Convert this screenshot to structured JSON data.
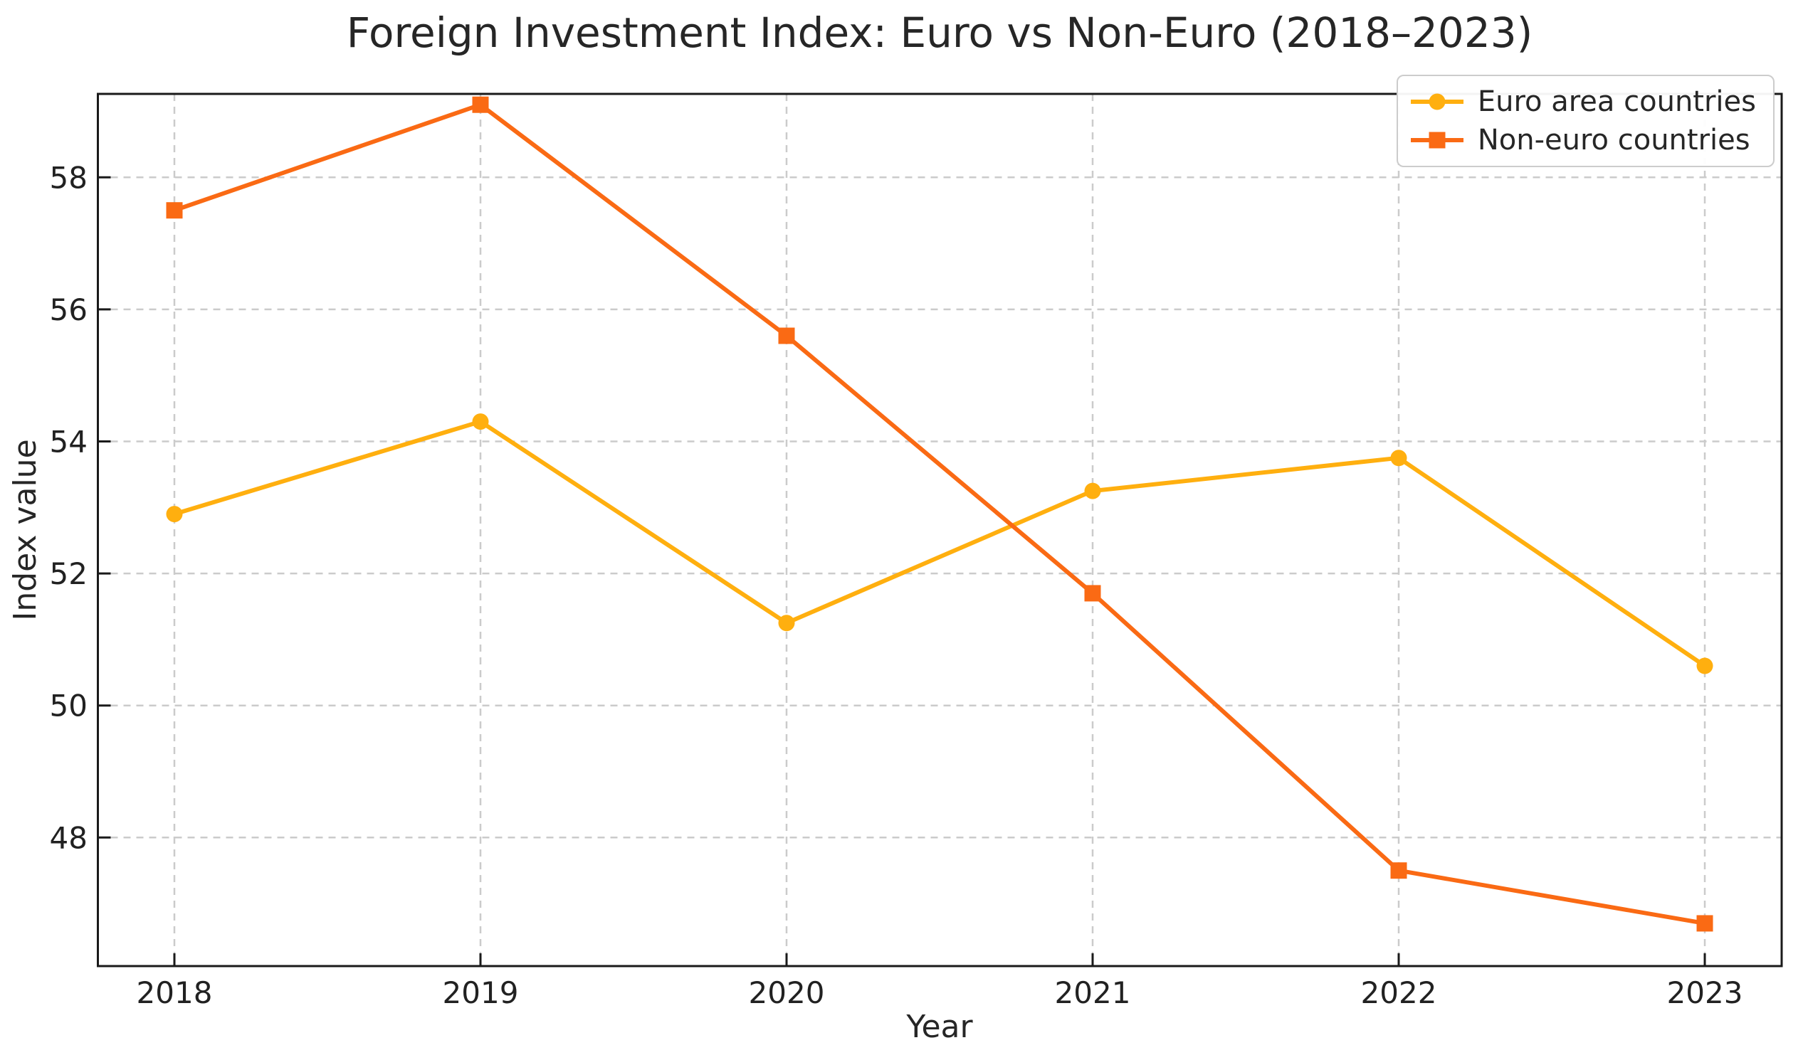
{
  "chart_data": {
    "type": "line",
    "title": "Foreign Investment Index: Euro vs Non-Euro (2018–2023)",
    "xlabel": "Year",
    "ylabel": "Index value",
    "categories": [
      "2018",
      "2019",
      "2020",
      "2021",
      "2022",
      "2023"
    ],
    "series": [
      {
        "name": "Euro area countries",
        "marker": "circle",
        "color": "#FFAF0F",
        "values": [
          52.9,
          54.3,
          51.25,
          53.25,
          53.75,
          50.6
        ]
      },
      {
        "name": "Non-euro countries",
        "marker": "square",
        "color": "#FA6A14",
        "values": [
          57.5,
          59.1,
          55.6,
          51.7,
          47.5,
          46.7
        ]
      }
    ],
    "yticks": [
      48,
      50,
      52,
      54,
      56,
      58
    ],
    "ylim": [
      46.05,
      59.25
    ],
    "xlim": [
      2017.75,
      2023.25
    ],
    "grid": true,
    "grid_style": "dashed",
    "grid_color": "#cbcbcb",
    "axis_color": "#1a1a1a",
    "tick_label_color": "#212121",
    "legend_position": "upper right"
  }
}
